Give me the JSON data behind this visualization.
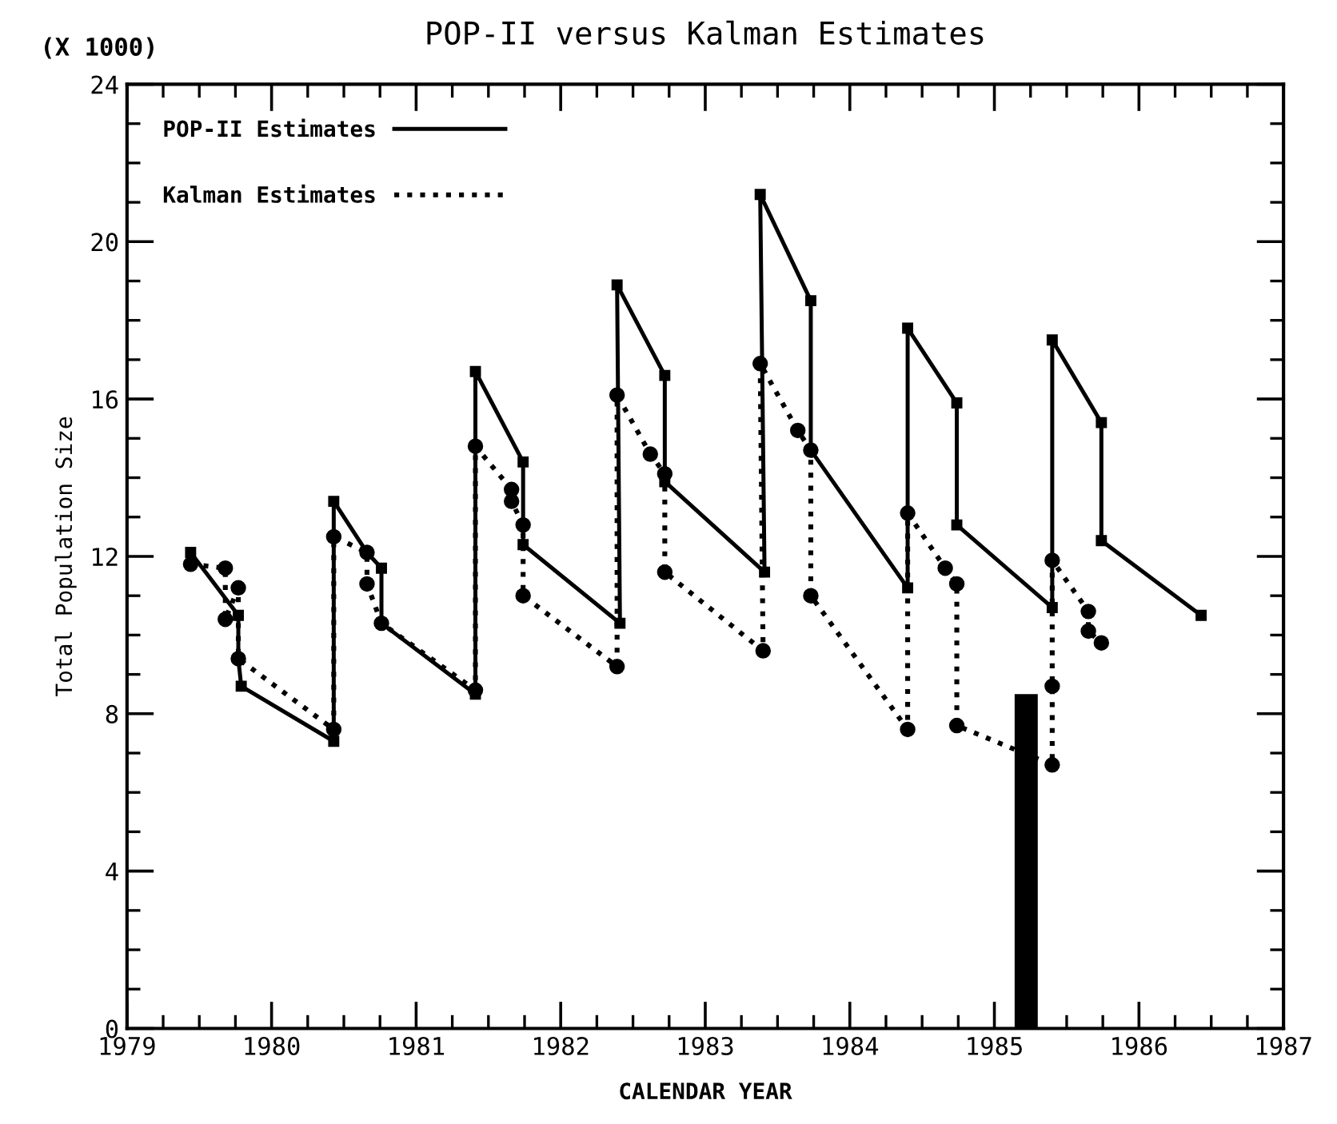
{
  "chart_data": {
    "type": "line",
    "title": "POP-II versus Kalman Estimates",
    "xlabel": "CALENDAR YEAR",
    "ylabel": "Total Population Size",
    "annotations": [
      "(X 1000)"
    ],
    "xlim": [
      1979,
      1987
    ],
    "xticks": [
      1979,
      1980,
      1981,
      1982,
      1983,
      1984,
      1985,
      1986,
      1987
    ],
    "ylim": [
      0,
      24
    ],
    "yticks": [
      0,
      4,
      8,
      12,
      16,
      20,
      24
    ],
    "grid": false,
    "legend": "top left",
    "series": [
      {
        "name": "POP-II Estimates",
        "color": "#000000",
        "line_style": "solid",
        "marker": "square",
        "x": [
          1979.44,
          1979.77,
          1979.77,
          1979.79,
          1980.43,
          1980.43,
          1980.66,
          1980.76,
          1980.76,
          1981.41,
          1981.41,
          1981.74,
          1981.74,
          1982.41,
          1982.39,
          1982.72,
          1982.72,
          1983.41,
          1983.38,
          1983.73,
          1983.73,
          1984.4,
          1984.4,
          1984.74,
          1984.74,
          1985.4,
          1985.4,
          1985.74,
          1985.74,
          1986.43
        ],
        "values": [
          12.1,
          10.5,
          9.4,
          8.7,
          7.3,
          13.4,
          12.1,
          11.7,
          10.3,
          8.5,
          16.7,
          14.4,
          12.3,
          10.3,
          18.9,
          16.6,
          13.9,
          11.6,
          21.2,
          18.5,
          14.7,
          11.2,
          17.8,
          15.9,
          12.8,
          10.7,
          17.5,
          15.4,
          12.4,
          10.5
        ]
      },
      {
        "name": "Kalman Estimates",
        "color": "#000000",
        "line_style": "dotted",
        "marker": "circle",
        "x": [
          1979.44,
          1979.68,
          1979.68,
          1979.77,
          1979.77,
          1980.43,
          1980.43,
          1980.66,
          1980.66,
          1980.76,
          1981.41,
          1981.41,
          1981.66,
          1981.66,
          1981.74,
          1981.74,
          1982.39,
          1982.39,
          1982.62,
          1982.72,
          1982.72,
          1983.4,
          1983.38,
          1983.64,
          1983.73,
          1983.73,
          1984.4,
          1984.4,
          1984.66,
          1984.74,
          1984.74,
          1985.4,
          1985.4,
          1985.4,
          1985.65,
          1985.65,
          1985.74
        ],
        "values": [
          11.8,
          11.7,
          10.4,
          11.2,
          9.4,
          7.6,
          12.5,
          12.1,
          11.3,
          10.3,
          8.6,
          14.8,
          13.7,
          13.4,
          12.8,
          11.0,
          9.2,
          16.1,
          14.6,
          14.1,
          11.6,
          9.6,
          16.9,
          15.2,
          14.7,
          11.0,
          7.6,
          13.1,
          11.7,
          11.3,
          7.7,
          6.7,
          8.7,
          11.9,
          10.6,
          10.1,
          9.8
        ]
      },
      {
        "type": "bar",
        "color": "#000000",
        "x": [
          1985.22
        ],
        "values": [
          8.5
        ]
      }
    ]
  }
}
